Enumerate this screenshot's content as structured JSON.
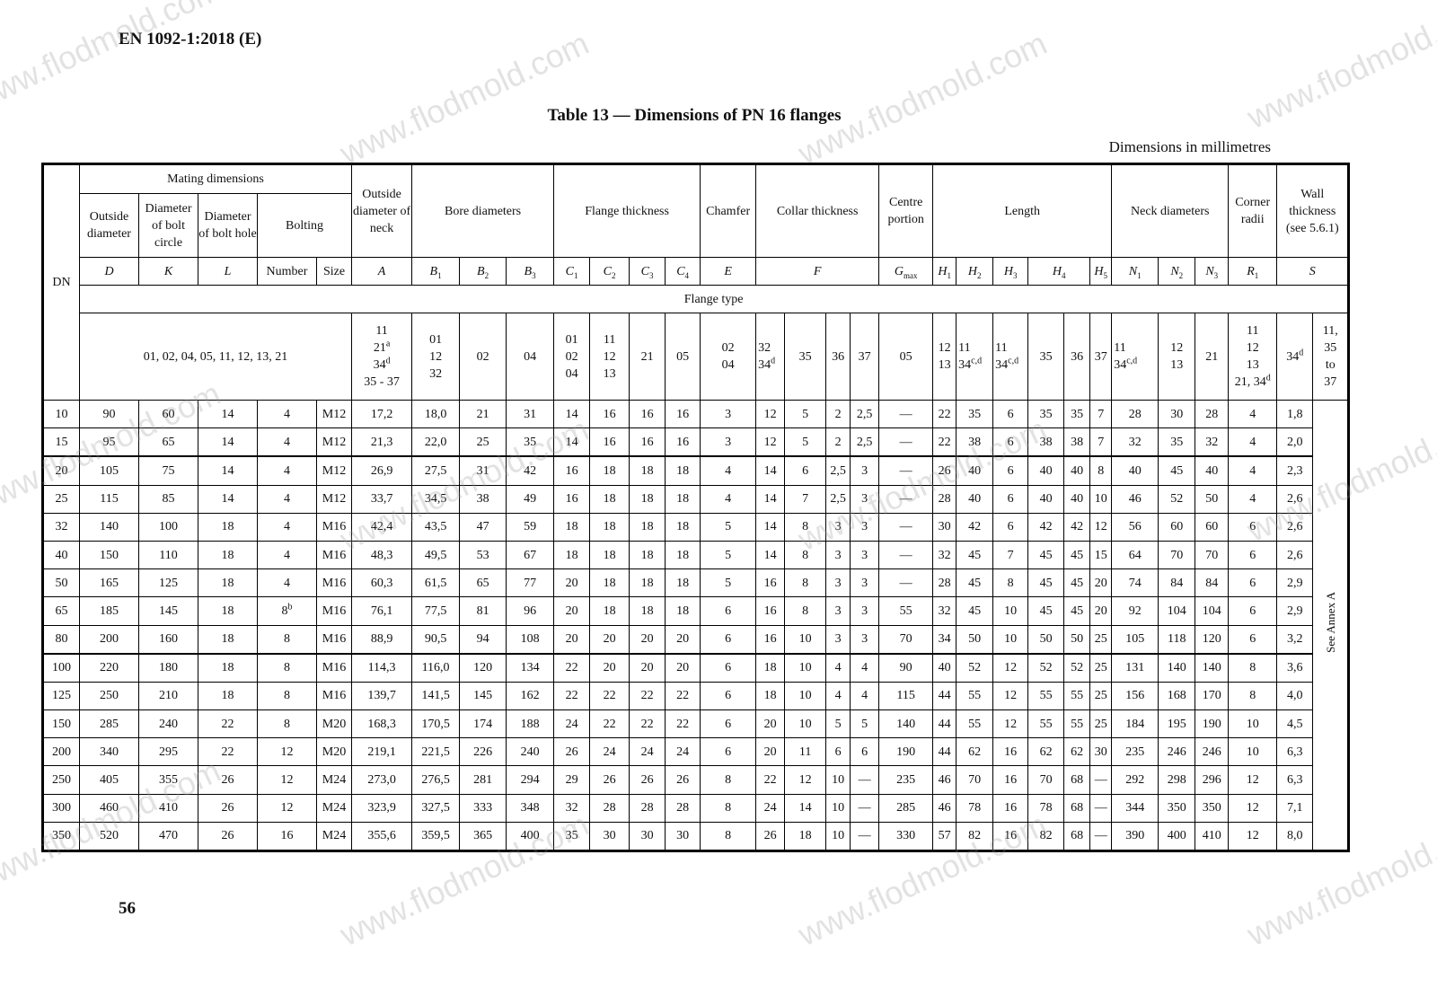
{
  "document": {
    "standard": "EN 1092-1:2018 (E)",
    "title": "Table 13 — Dimensions of PN 16 flanges",
    "units_note": "Dimensions in millimetres",
    "page_number": "56",
    "watermark": "www.flodmold.com"
  },
  "header": {
    "dn": "DN",
    "mating": "Mating dimensions",
    "outside_diameter": "Outside diameter",
    "bolt_circle": "Diameter of bolt circle",
    "bolt_hole": "Diameter of bolt hole",
    "bolting": "Bolting",
    "neck_outside": "Outside diameter of neck",
    "bore": "Bore diameters",
    "flange_thickness": "Flange thickness",
    "chamfer": "Chamfer",
    "collar": "Collar thickness",
    "centre": "Centre portion",
    "length": "Length",
    "neck_diam": "Neck diameters",
    "corner": "Corner radii",
    "wall": "Wall thickness (see 5.6.1)",
    "flange_type": "Flange type",
    "see_annex": "See Annex A",
    "symbols": [
      "D",
      "K",
      "L",
      "Number",
      "Size",
      "A",
      "B_1",
      "B_2",
      "B_3",
      "C_1",
      "C_2",
      "C_3",
      "C_4",
      "E",
      "F",
      "G_max",
      "H_1",
      "H_2",
      "H_3",
      "H_4",
      "H_5",
      "N_1",
      "N_2",
      "N_3",
      "R_1",
      "S"
    ],
    "types": [
      "01, 02, 04, 05, 11, 12, 13, 21",
      "11\n21^a\n34^d\n35 - 37",
      "01\n12\n32",
      "02",
      "04",
      "01\n02\n04",
      "11\n12\n13",
      "21",
      "05",
      "02\n04",
      "32\n34^d",
      "35",
      "36",
      "37",
      "05",
      "12\n13",
      "11\n34^c,d",
      "11\n34^c,d",
      "35",
      "36",
      "37",
      "11\n34^c,d",
      "12\n13",
      "21",
      "11\n12\n13\n21, 34^d",
      "34^d",
      "11,\n35\nto\n37"
    ]
  },
  "rows": [
    [
      "10",
      "90",
      "60",
      "14",
      "4",
      "M12",
      "17,2",
      "18,0",
      "21",
      "31",
      "14",
      "16",
      "16",
      "16",
      "3",
      "12",
      "5",
      "2",
      "2,5",
      "—",
      "22",
      "35",
      "6",
      "35",
      "35",
      "7",
      "28",
      "30",
      "28",
      "4",
      "1,8"
    ],
    [
      "15",
      "95",
      "65",
      "14",
      "4",
      "M12",
      "21,3",
      "22,0",
      "25",
      "35",
      "14",
      "16",
      "16",
      "16",
      "3",
      "12",
      "5",
      "2",
      "2,5",
      "—",
      "22",
      "38",
      "6",
      "38",
      "38",
      "7",
      "32",
      "35",
      "32",
      "4",
      "2,0"
    ],
    [
      "20",
      "105",
      "75",
      "14",
      "4",
      "M12",
      "26,9",
      "27,5",
      "31",
      "42",
      "16",
      "18",
      "18",
      "18",
      "4",
      "14",
      "6",
      "2,5",
      "3",
      "—",
      "26",
      "40",
      "6",
      "40",
      "40",
      "8",
      "40",
      "45",
      "40",
      "4",
      "2,3"
    ],
    [
      "25",
      "115",
      "85",
      "14",
      "4",
      "M12",
      "33,7",
      "34,5",
      "38",
      "49",
      "16",
      "18",
      "18",
      "18",
      "4",
      "14",
      "7",
      "2,5",
      "3",
      "—",
      "28",
      "40",
      "6",
      "40",
      "40",
      "10",
      "46",
      "52",
      "50",
      "4",
      "2,6"
    ],
    [
      "32",
      "140",
      "100",
      "18",
      "4",
      "M16",
      "42,4",
      "43,5",
      "47",
      "59",
      "18",
      "18",
      "18",
      "18",
      "5",
      "14",
      "8",
      "3",
      "3",
      "—",
      "30",
      "42",
      "6",
      "42",
      "42",
      "12",
      "56",
      "60",
      "60",
      "6",
      "2,6"
    ],
    [
      "40",
      "150",
      "110",
      "18",
      "4",
      "M16",
      "48,3",
      "49,5",
      "53",
      "67",
      "18",
      "18",
      "18",
      "18",
      "5",
      "14",
      "8",
      "3",
      "3",
      "—",
      "32",
      "45",
      "7",
      "45",
      "45",
      "15",
      "64",
      "70",
      "70",
      "6",
      "2,6"
    ],
    [
      "50",
      "165",
      "125",
      "18",
      "4",
      "M16",
      "60,3",
      "61,5",
      "65",
      "77",
      "20",
      "18",
      "18",
      "18",
      "5",
      "16",
      "8",
      "3",
      "3",
      "—",
      "28",
      "45",
      "8",
      "45",
      "45",
      "20",
      "74",
      "84",
      "84",
      "6",
      "2,9"
    ],
    [
      "65",
      "185",
      "145",
      "18",
      "8^b",
      "M16",
      "76,1",
      "77,5",
      "81",
      "96",
      "20",
      "18",
      "18",
      "18",
      "6",
      "16",
      "8",
      "3",
      "3",
      "55",
      "32",
      "45",
      "10",
      "45",
      "45",
      "20",
      "92",
      "104",
      "104",
      "6",
      "2,9"
    ],
    [
      "80",
      "200",
      "160",
      "18",
      "8",
      "M16",
      "88,9",
      "90,5",
      "94",
      "108",
      "20",
      "20",
      "20",
      "20",
      "6",
      "16",
      "10",
      "3",
      "3",
      "70",
      "34",
      "50",
      "10",
      "50",
      "50",
      "25",
      "105",
      "118",
      "120",
      "6",
      "3,2"
    ],
    [
      "100",
      "220",
      "180",
      "18",
      "8",
      "M16",
      "114,3",
      "116,0",
      "120",
      "134",
      "22",
      "20",
      "20",
      "20",
      "6",
      "18",
      "10",
      "4",
      "4",
      "90",
      "40",
      "52",
      "12",
      "52",
      "52",
      "25",
      "131",
      "140",
      "140",
      "8",
      "3,6"
    ],
    [
      "125",
      "250",
      "210",
      "18",
      "8",
      "M16",
      "139,7",
      "141,5",
      "145",
      "162",
      "22",
      "22",
      "22",
      "22",
      "6",
      "18",
      "10",
      "4",
      "4",
      "115",
      "44",
      "55",
      "12",
      "55",
      "55",
      "25",
      "156",
      "168",
      "170",
      "8",
      "4,0"
    ],
    [
      "150",
      "285",
      "240",
      "22",
      "8",
      "M20",
      "168,3",
      "170,5",
      "174",
      "188",
      "24",
      "22",
      "22",
      "22",
      "6",
      "20",
      "10",
      "5",
      "5",
      "140",
      "44",
      "55",
      "12",
      "55",
      "55",
      "25",
      "184",
      "195",
      "190",
      "10",
      "4,5"
    ],
    [
      "200",
      "340",
      "295",
      "22",
      "12",
      "M20",
      "219,1",
      "221,5",
      "226",
      "240",
      "26",
      "24",
      "24",
      "24",
      "6",
      "20",
      "11",
      "6",
      "6",
      "190",
      "44",
      "62",
      "16",
      "62",
      "62",
      "30",
      "235",
      "246",
      "246",
      "10",
      "6,3"
    ],
    [
      "250",
      "405",
      "355",
      "26",
      "12",
      "M24",
      "273,0",
      "276,5",
      "281",
      "294",
      "29",
      "26",
      "26",
      "26",
      "8",
      "22",
      "12",
      "10",
      "—",
      "235",
      "46",
      "70",
      "16",
      "70",
      "68",
      "—",
      "292",
      "298",
      "296",
      "12",
      "6,3"
    ],
    [
      "300",
      "460",
      "410",
      "26",
      "12",
      "M24",
      "323,9",
      "327,5",
      "333",
      "348",
      "32",
      "28",
      "28",
      "28",
      "8",
      "24",
      "14",
      "10",
      "—",
      "285",
      "46",
      "78",
      "16",
      "78",
      "68",
      "—",
      "344",
      "350",
      "350",
      "12",
      "7,1"
    ],
    [
      "350",
      "520",
      "470",
      "26",
      "16",
      "M24",
      "355,6",
      "359,5",
      "365",
      "400",
      "35",
      "30",
      "30",
      "30",
      "8",
      "26",
      "18",
      "10",
      "—",
      "330",
      "57",
      "82",
      "16",
      "82",
      "68",
      "—",
      "390",
      "400",
      "410",
      "12",
      "8,0"
    ]
  ]
}
